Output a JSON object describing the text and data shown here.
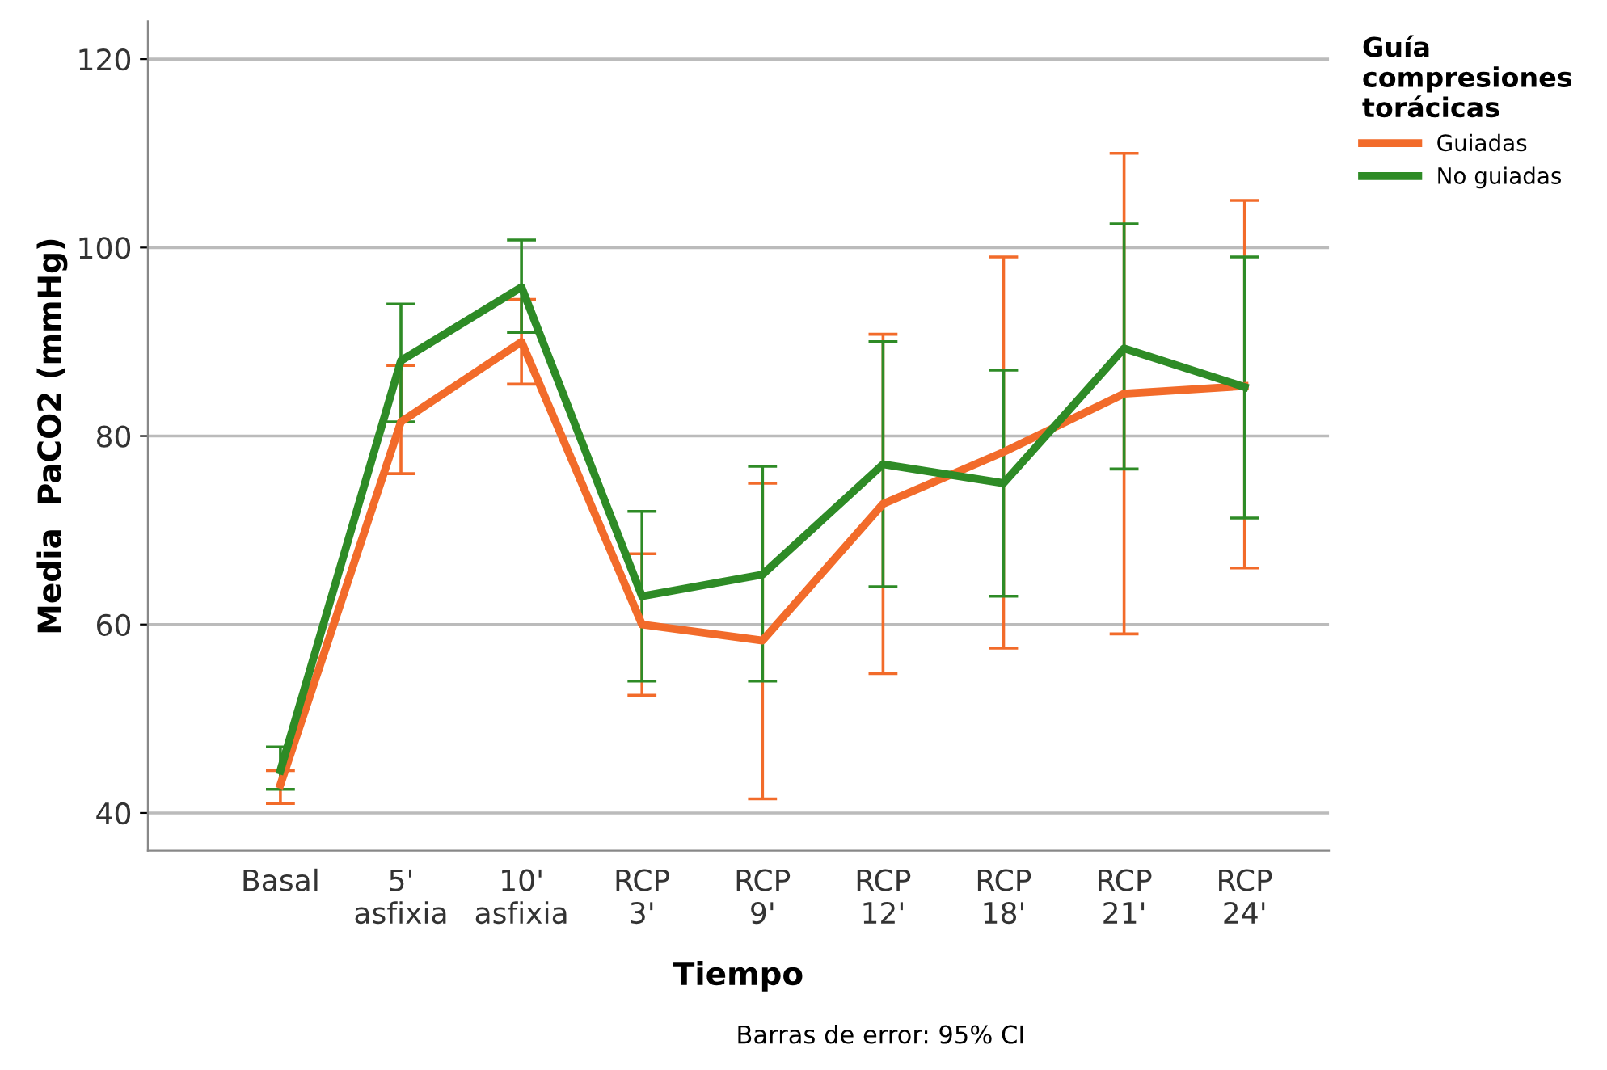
{
  "chart_data": {
    "type": "line",
    "xlabel": "Tiempo",
    "ylabel": "Media  PaCO2 (mmHg)",
    "legend_title": "Guía\ncompresiones\ntorácicas",
    "categories": [
      "Basal",
      "5'\nasfixia",
      "10'\nasfixia",
      "RCP\n3'",
      "RCP\n9'",
      "RCP\n12'",
      "RCP\n18'",
      "RCP\n21'",
      "RCP\n24'"
    ],
    "series": [
      {
        "name": "Guiadas",
        "color": "#f26b2a",
        "values": [
          43,
          81.5,
          90,
          60,
          58.3,
          72.8,
          78.3,
          84.5,
          85.3
        ],
        "errors": [
          [
            41,
            44.5
          ],
          [
            76,
            87.5
          ],
          [
            85.5,
            94.5
          ],
          [
            52.5,
            67.5
          ],
          [
            41.5,
            75
          ],
          [
            54.8,
            90.8
          ],
          [
            57.5,
            99
          ],
          [
            59,
            110
          ],
          [
            66,
            105
          ]
        ]
      },
      {
        "name": "No guiadas",
        "color": "#2e8b26",
        "values": [
          44.5,
          88,
          95.8,
          63,
          65.3,
          77,
          75,
          89.3,
          85.2
        ],
        "errors": [
          [
            42.5,
            47
          ],
          [
            81.5,
            94
          ],
          [
            91,
            100.8
          ],
          [
            54,
            72
          ],
          [
            54,
            76.8
          ],
          [
            64,
            90
          ],
          [
            63,
            87
          ],
          [
            76.5,
            102.5
          ],
          [
            71.3,
            99
          ]
        ]
      }
    ],
    "ylim": [
      36,
      124
    ],
    "yticks": [
      40,
      60,
      80,
      100,
      120
    ],
    "grid": "y",
    "legend": "top right",
    "marker": "none",
    "line_style": "solid",
    "annotations": [
      "Barras de error: 95% CI"
    ]
  }
}
